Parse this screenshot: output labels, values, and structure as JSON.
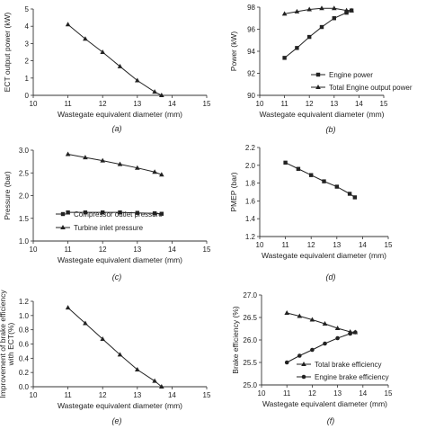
{
  "chart_data": [
    {
      "panel": "a",
      "caption": "(a)",
      "type": "line",
      "xlabel": "Wastegate equivalent diameter  (mm)",
      "ylabel": "ECT output power (kW)",
      "xlim": [
        10,
        15
      ],
      "ylim": [
        0,
        5
      ],
      "xticks": [
        "10",
        "11",
        "12",
        "13",
        "14",
        "15"
      ],
      "yticks": [
        "0",
        "1",
        "2",
        "3",
        "4",
        "5"
      ],
      "legend": "none",
      "grid": false,
      "series": [
        {
          "marker": "triangle",
          "x": [
            11,
            11.5,
            12,
            12.5,
            13,
            13.5,
            13.7
          ],
          "y": [
            4.1,
            3.27,
            2.5,
            1.67,
            0.86,
            0.2,
            0.0
          ]
        }
      ]
    },
    {
      "panel": "b",
      "caption": "(b)",
      "type": "line",
      "xlabel": "Wastegate equivalent diameter  (mm)",
      "ylabel": "Power (kW)",
      "xlim": [
        10,
        15
      ],
      "ylim": [
        90,
        98
      ],
      "xticks": [
        "10",
        "11",
        "12",
        "13",
        "14",
        "15"
      ],
      "yticks": [
        "90",
        "92",
        "94",
        "96",
        "98"
      ],
      "legend": "bottom-right",
      "grid": false,
      "series": [
        {
          "name": "Engine power",
          "marker": "square",
          "x": [
            11,
            11.5,
            12,
            12.5,
            13,
            13.5,
            13.7
          ],
          "y": [
            93.4,
            94.3,
            95.3,
            96.2,
            97.0,
            97.5,
            97.7
          ]
        },
        {
          "name": "Total Engine output power",
          "marker": "triangle",
          "x": [
            11,
            11.5,
            12,
            12.5,
            13,
            13.5,
            13.7
          ],
          "y": [
            97.4,
            97.6,
            97.8,
            97.9,
            97.9,
            97.7,
            97.7
          ]
        }
      ]
    },
    {
      "panel": "c",
      "caption": "(c)",
      "type": "line",
      "xlabel": "Wastegate equivalent diameter  (mm)",
      "ylabel": "Pressure (bar)",
      "xlim": [
        10,
        15
      ],
      "ylim": [
        1,
        3
      ],
      "xticks": [
        "10",
        "11",
        "12",
        "13",
        "14",
        "15"
      ],
      "yticks": [
        "1.0",
        "1.5",
        "2.0",
        "2.5",
        "3.0"
      ],
      "legend": "bottom-left",
      "grid": false,
      "series": [
        {
          "name": "Compressor outlet pressure",
          "marker": "square",
          "x": [
            11,
            11.5,
            12,
            12.5,
            13,
            13.5,
            13.7
          ],
          "y": [
            1.63,
            1.63,
            1.63,
            1.63,
            1.62,
            1.61,
            1.6
          ]
        },
        {
          "name": "Turbine inlet pressure",
          "marker": "triangle",
          "x": [
            11,
            11.5,
            12,
            12.5,
            13,
            13.5,
            13.7
          ],
          "y": [
            2.91,
            2.84,
            2.77,
            2.69,
            2.61,
            2.52,
            2.46
          ]
        }
      ]
    },
    {
      "panel": "d",
      "caption": "(d)",
      "type": "line",
      "xlabel": "Wastegate equivalent diameter  (mm)",
      "ylabel": "PMEP (bar)",
      "xlim": [
        10,
        15
      ],
      "ylim": [
        1.2,
        2.2
      ],
      "xticks": [
        "10",
        "11",
        "12",
        "13",
        "14",
        "15"
      ],
      "yticks": [
        "1.2",
        "1.4",
        "1.6",
        "1.8",
        "2.0",
        "2.2"
      ],
      "legend": "none",
      "grid": false,
      "series": [
        {
          "marker": "square",
          "x": [
            11,
            11.5,
            12,
            12.5,
            13,
            13.5,
            13.7
          ],
          "y": [
            2.03,
            1.96,
            1.89,
            1.82,
            1.76,
            1.68,
            1.64
          ]
        }
      ]
    },
    {
      "panel": "e",
      "caption": "(e)",
      "type": "line",
      "xlabel": "Wastegate equivalent diameter  (mm)",
      "ylabel": "Improvement of brake efficiency  with ECT(%)",
      "xlim": [
        10,
        15
      ],
      "ylim": [
        0,
        1.2
      ],
      "xticks": [
        "10",
        "11",
        "12",
        "13",
        "14",
        "15"
      ],
      "yticks": [
        "0.0",
        "0.2",
        "0.4",
        "0.6",
        "0.8",
        "1.0",
        "1.2"
      ],
      "legend": "none",
      "grid": false,
      "series": [
        {
          "marker": "triangle",
          "x": [
            11,
            11.5,
            12,
            12.5,
            13,
            13.5,
            13.7
          ],
          "y": [
            1.11,
            0.89,
            0.67,
            0.45,
            0.24,
            0.08,
            0.0
          ]
        }
      ]
    },
    {
      "panel": "f",
      "caption": "(f)",
      "type": "line",
      "xlabel": "Wastegate equivalent diameter  (mm)",
      "ylabel": "Brake efficiency (%)",
      "xlim": [
        10,
        15
      ],
      "ylim": [
        25,
        27
      ],
      "xticks": [
        "10",
        "11",
        "12",
        "13",
        "14",
        "15"
      ],
      "yticks": [
        "25.0",
        "25.5",
        "26.0",
        "26.5",
        "27.0"
      ],
      "legend": "bottom-right",
      "grid": false,
      "series": [
        {
          "name": "Total brake efficiency",
          "marker": "triangle",
          "x": [
            11,
            11.5,
            12,
            12.5,
            13,
            13.5,
            13.7
          ],
          "y": [
            26.6,
            26.53,
            26.45,
            26.36,
            26.26,
            26.18,
            26.17
          ]
        },
        {
          "name": "Engine brake efficiency",
          "marker": "circle",
          "x": [
            11,
            11.5,
            12,
            12.5,
            13,
            13.5,
            13.7
          ],
          "y": [
            25.5,
            25.65,
            25.78,
            25.92,
            26.04,
            26.14,
            26.17
          ]
        }
      ]
    }
  ]
}
